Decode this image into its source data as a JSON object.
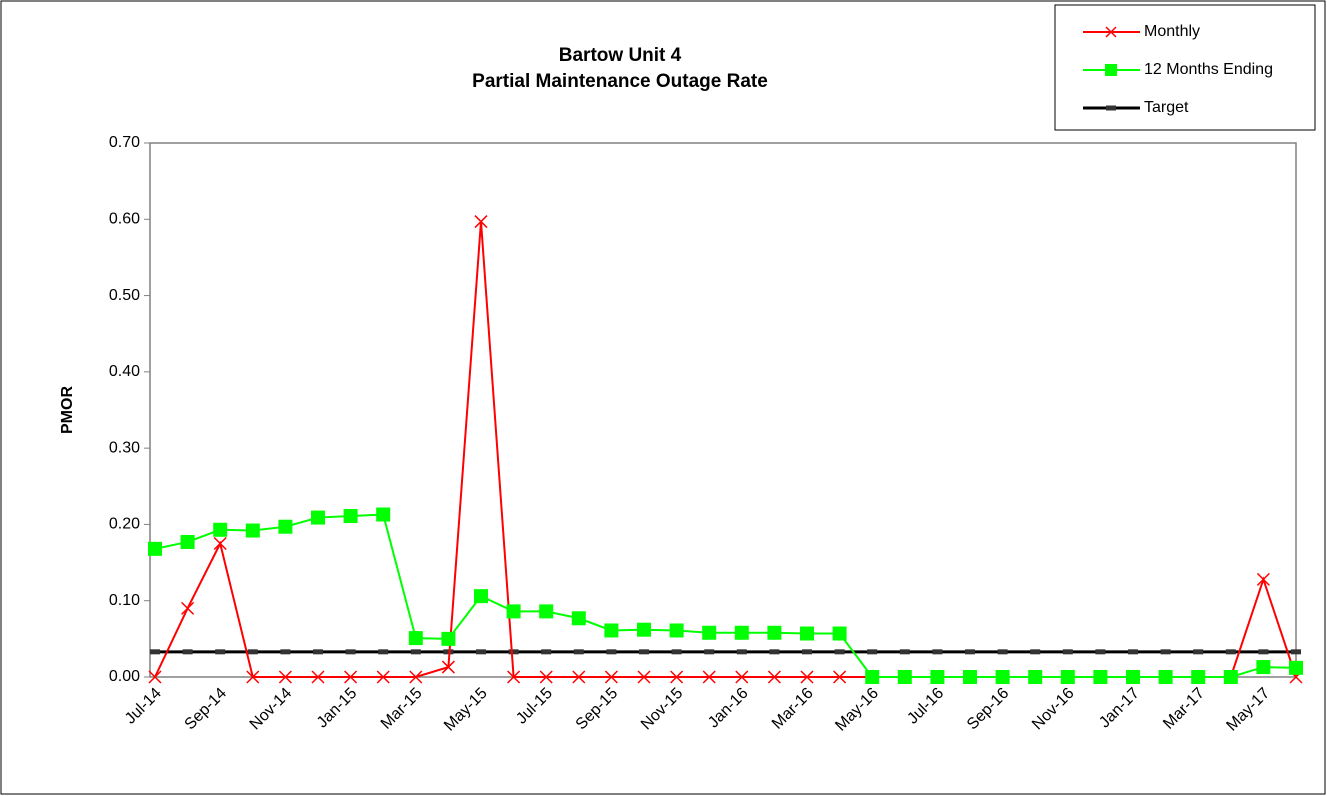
{
  "chart_data": {
    "type": "line",
    "title": "Bartow Unit 4",
    "subtitle": "Partial Maintenance Outage Rate",
    "y_label": "PMOR",
    "categories": [
      "Jul-14",
      null,
      "Sep-14",
      null,
      "Nov-14",
      null,
      "Jan-15",
      null,
      "Mar-15",
      null,
      "May-15",
      null,
      "Jul-15",
      null,
      "Sep-15",
      null,
      "Nov-15",
      null,
      "Jan-16",
      null,
      "Mar-16",
      null,
      "May-16",
      null,
      "Jul-16",
      null,
      "Sep-16",
      null,
      "Nov-16",
      null,
      "Jan-17",
      null,
      "Mar-17",
      null,
      "May-17",
      null
    ],
    "series": [
      {
        "name": "Monthly",
        "color": "#ff0000",
        "marker": "x",
        "values": [
          0,
          0.09,
          0.175,
          0,
          0,
          0,
          0,
          0,
          0,
          0.013,
          0.597,
          0,
          0,
          0,
          0,
          0,
          0,
          0,
          0,
          0,
          0,
          0,
          0,
          0,
          0,
          0,
          0,
          0,
          0,
          0,
          0,
          0,
          0,
          0,
          0.128,
          0
        ]
      },
      {
        "name": "12 Months Ending",
        "color": "#00ff00",
        "marker": "square",
        "values": [
          0.168,
          0.177,
          0.193,
          0.192,
          0.197,
          0.209,
          0.211,
          0.213,
          0.051,
          0.05,
          0.106,
          0.086,
          0.086,
          0.077,
          0.061,
          0.062,
          0.061,
          0.058,
          0.058,
          0.058,
          0.057,
          0.057,
          0,
          0,
          0,
          0,
          0,
          0,
          0,
          0,
          0,
          0,
          0,
          0,
          0.013,
          0.012
        ]
      },
      {
        "name": "Target",
        "color": "#000000",
        "marker": "dash",
        "values": [
          0.033,
          0.033,
          0.033,
          0.033,
          0.033,
          0.033,
          0.033,
          0.033,
          0.033,
          0.033,
          0.033,
          0.033,
          0.033,
          0.033,
          0.033,
          0.033,
          0.033,
          0.033,
          0.033,
          0.033,
          0.033,
          0.033,
          0.033,
          0.033,
          0.033,
          0.033,
          0.033,
          0.033,
          0.033,
          0.033,
          0.033,
          0.033,
          0.033,
          0.033,
          0.033,
          0.033
        ]
      }
    ],
    "ylim": [
      0,
      0.7
    ],
    "yticks": [
      {
        "value": 0,
        "label": "0.00"
      },
      {
        "value": 0.1,
        "label": "0.10"
      },
      {
        "value": 0.2,
        "label": "0.20"
      },
      {
        "value": 0.3,
        "label": "0.30"
      },
      {
        "value": 0.4,
        "label": "0.40"
      },
      {
        "value": 0.5,
        "label": "0.50"
      },
      {
        "value": 0.6,
        "label": "0.60"
      },
      {
        "value": 0.7,
        "label": "0.70"
      }
    ],
    "legend": "top-right"
  }
}
